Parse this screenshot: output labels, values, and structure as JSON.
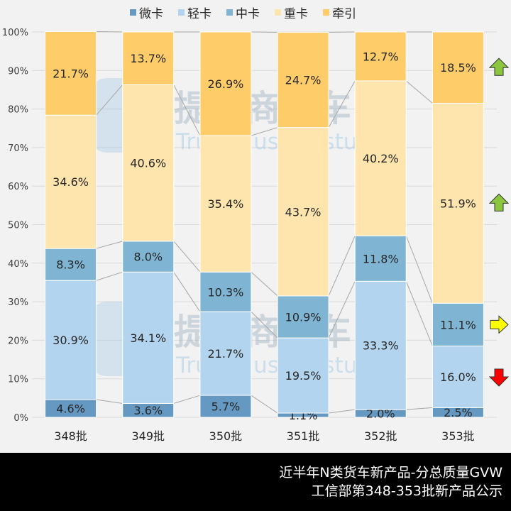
{
  "chart_data": {
    "type": "bar",
    "stacked": true,
    "normalized": true,
    "categories": [
      "348批",
      "349批",
      "350批",
      "351批",
      "352批",
      "353批"
    ],
    "series": [
      {
        "name": "微卡",
        "color": "#6699c2",
        "values": [
          4.6,
          3.6,
          5.7,
          1.1,
          2.0,
          2.5
        ]
      },
      {
        "name": "轻卡",
        "color": "#b3d4ef",
        "values": [
          30.9,
          34.1,
          21.7,
          19.5,
          33.3,
          16.0
        ]
      },
      {
        "name": "中卡",
        "color": "#7fb5d3",
        "values": [
          8.3,
          8.0,
          10.3,
          10.9,
          11.8,
          11.1
        ]
      },
      {
        "name": "重卡",
        "color": "#fde5ad",
        "values": [
          34.6,
          40.6,
          35.4,
          43.7,
          40.2,
          51.9
        ]
      },
      {
        "name": "牵引",
        "color": "#fecd6a",
        "values": [
          21.7,
          13.7,
          26.9,
          24.7,
          12.7,
          18.5
        ]
      }
    ],
    "yticks": [
      "0%",
      "10%",
      "20%",
      "30%",
      "40%",
      "50%",
      "60%",
      "70%",
      "80%",
      "90%",
      "100%"
    ],
    "ylim": [
      0,
      100
    ],
    "grid": true,
    "legend": "top",
    "trend_arrows": [
      {
        "series": "牵引",
        "direction": "up",
        "color": "#8cc63f"
      },
      {
        "series": "重卡",
        "direction": "up",
        "color": "#8cc63f"
      },
      {
        "series": "中卡",
        "direction": "right",
        "color": "#ffff00"
      },
      {
        "series": "轻卡",
        "direction": "down",
        "color": "#ff0000"
      }
    ]
  },
  "watermark": {
    "cn": "提加商用车",
    "en": "TruckPlus CV studio"
  },
  "footer": {
    "line1": "近半年N类货车新产品-分总质量GVW",
    "line2": "工信部第348-353批新产品公示"
  }
}
